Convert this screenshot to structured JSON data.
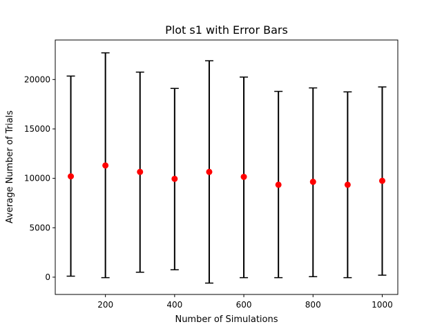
{
  "chart_data": {
    "type": "scatter",
    "title": "Plot s1 with Error Bars",
    "xlabel": "Number of Simulations",
    "ylabel": "Average Number of Trials",
    "xlim": [
      55,
      1045
    ],
    "ylim": [
      -1750,
      24000
    ],
    "x_ticks": [
      200,
      400,
      600,
      800,
      1000
    ],
    "y_ticks": [
      0,
      5000,
      10000,
      15000,
      20000
    ],
    "grid": false,
    "colors": {
      "marker": "#ff0000",
      "errorbar": "#000000"
    },
    "series": [
      {
        "x": [
          100,
          200,
          300,
          400,
          500,
          600,
          700,
          800,
          900,
          1000
        ],
        "y": [
          10200,
          11300,
          10650,
          9950,
          10650,
          10150,
          9350,
          9650,
          9350,
          9750
        ],
        "yerr_low": [
          100,
          -50,
          500,
          750,
          -600,
          -50,
          -50,
          50,
          -50,
          200
        ],
        "yerr_high": [
          20350,
          22700,
          20750,
          19100,
          21900,
          20250,
          18800,
          19150,
          18750,
          19250
        ]
      }
    ]
  }
}
